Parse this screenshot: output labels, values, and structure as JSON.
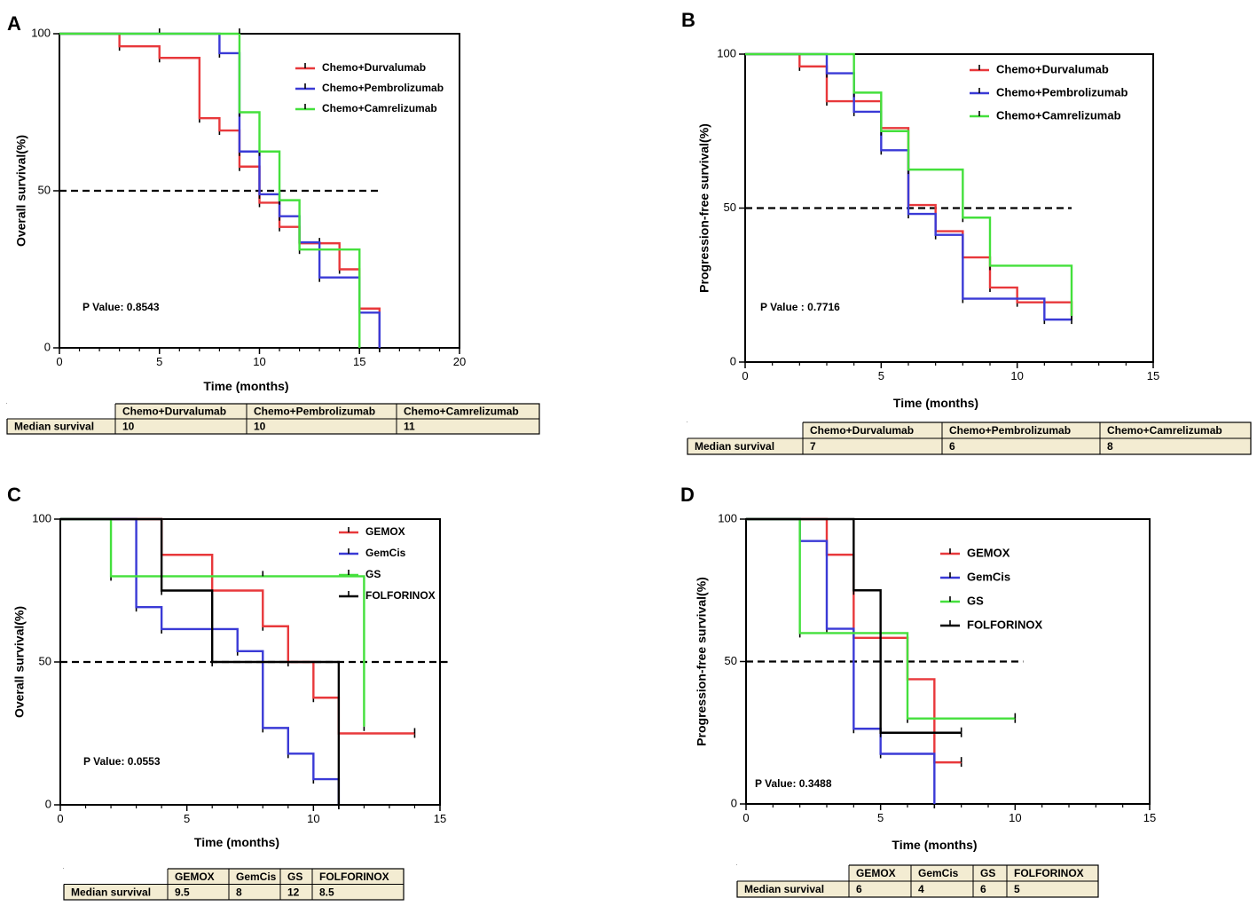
{
  "colors": {
    "red": "#e8383b",
    "blue": "#3a3ad6",
    "green": "#44e03c",
    "black": "#000000",
    "table_bg": "#f3ecd2"
  },
  "chart_data": [
    {
      "panel": "A",
      "type": "line",
      "subtype": "kaplan-meier step",
      "xlabel": "Time (months)",
      "ylabel": "Overall survival(%)",
      "xlim": [
        0,
        20
      ],
      "ylim": [
        0,
        100
      ],
      "xticks": [
        0,
        5,
        10,
        15,
        20
      ],
      "yticks": [
        0,
        50,
        100
      ],
      "reference_line": {
        "y": 50,
        "x_range": [
          0,
          16
        ],
        "style": "dashed"
      },
      "annotation": "P Value: 0.8543",
      "legend_position": "top-right",
      "series": [
        {
          "name": "Chemo+Durvalumab",
          "color": "red",
          "steps": [
            [
              0,
              100
            ],
            [
              3,
              96
            ],
            [
              5,
              92.3
            ],
            [
              7,
              73.1
            ],
            [
              8,
              69.2
            ],
            [
              9,
              57.7
            ],
            [
              10,
              46.2
            ],
            [
              11,
              38.5
            ],
            [
              12,
              33.3
            ],
            [
              14,
              25
            ],
            [
              15,
              12.5
            ],
            [
              16,
              0
            ]
          ],
          "censors": [
            [
              13,
              33.3
            ]
          ]
        },
        {
          "name": "Chemo+Pembrolizumab",
          "color": "blue",
          "steps": [
            [
              0,
              100
            ],
            [
              8,
              93.8
            ],
            [
              9,
              62.5
            ],
            [
              10,
              48.9
            ],
            [
              11,
              41.9
            ],
            [
              12,
              33.6
            ],
            [
              13,
              22.4
            ],
            [
              15,
              11.2
            ],
            [
              16,
              0
            ]
          ],
          "censors": [
            [
              5,
              100
            ]
          ]
        },
        {
          "name": "Chemo+Camrelizumab",
          "color": "green",
          "steps": [
            [
              0,
              100
            ],
            [
              9,
              75
            ],
            [
              10,
              62.5
            ],
            [
              11,
              47
            ],
            [
              12,
              31.3
            ],
            [
              15,
              0
            ]
          ],
          "censors": [
            [
              9,
              100
            ]
          ]
        }
      ],
      "table": {
        "row_label": "Median survival",
        "headers": [
          "Chemo+Durvalumab",
          "Chemo+Pembrolizumab",
          "Chemo+Camrelizumab"
        ],
        "values": [
          "10",
          "10",
          "11"
        ]
      }
    },
    {
      "panel": "B",
      "type": "line",
      "subtype": "kaplan-meier step",
      "xlabel": "Time (months)",
      "ylabel": "Progression-free survival(%)",
      "xlim": [
        0,
        15
      ],
      "ylim": [
        0,
        100
      ],
      "xticks": [
        0,
        5,
        10,
        15
      ],
      "yticks": [
        0,
        50,
        100
      ],
      "reference_line": {
        "y": 50,
        "x_range": [
          0,
          12
        ],
        "style": "dashed"
      },
      "annotation": "P Value : 0.7716",
      "legend_position": "top-right",
      "series": [
        {
          "name": "Chemo+Durvalumab",
          "color": "red",
          "steps": [
            [
              0,
              100
            ],
            [
              2,
              96
            ],
            [
              3,
              84.7
            ],
            [
              5,
              76
            ],
            [
              6,
              51
            ],
            [
              7,
              42.5
            ],
            [
              8,
              34
            ],
            [
              9,
              24.2
            ],
            [
              10,
              19.4
            ],
            [
              12,
              15
            ]
          ],
          "censors": []
        },
        {
          "name": "Chemo+Pembrolizumab",
          "color": "blue",
          "steps": [
            [
              0,
              100
            ],
            [
              3,
              93.8
            ],
            [
              4,
              81.3
            ],
            [
              5,
              68.8
            ],
            [
              6,
              48.1
            ],
            [
              7,
              41.3
            ],
            [
              8,
              20.6
            ],
            [
              11,
              13.8
            ],
            [
              12,
              13.8
            ]
          ],
          "censors": []
        },
        {
          "name": "Chemo+Camrelizumab",
          "color": "green",
          "steps": [
            [
              0,
              100
            ],
            [
              4,
              87.5
            ],
            [
              5,
              75
            ],
            [
              6,
              62.5
            ],
            [
              8,
              46.9
            ],
            [
              9,
              31.3
            ],
            [
              12,
              15
            ]
          ],
          "censors": []
        }
      ],
      "table": {
        "row_label": "Median survival",
        "headers": [
          "Chemo+Durvalumab",
          "Chemo+Pembrolizumab",
          "Chemo+Camrelizumab"
        ],
        "values": [
          "7",
          "6",
          "8"
        ]
      }
    },
    {
      "panel": "C",
      "type": "line",
      "subtype": "kaplan-meier step",
      "xlabel": "Time (months)",
      "ylabel": "Overall survival(%)",
      "xlim": [
        0,
        15
      ],
      "ylim": [
        0,
        100
      ],
      "xticks": [
        0,
        5,
        10,
        15
      ],
      "yticks": [
        0,
        50,
        100
      ],
      "reference_line": {
        "y": 50,
        "x_range": [
          0,
          15.3
        ],
        "style": "dashed"
      },
      "annotation": "P Value: 0.0553",
      "legend_position": "top-right",
      "series": [
        {
          "name": "GEMOX",
          "color": "red",
          "steps": [
            [
              0,
              100
            ],
            [
              4,
              87.5
            ],
            [
              6,
              75
            ],
            [
              8,
              62.5
            ],
            [
              9,
              50
            ],
            [
              10,
              37.5
            ],
            [
              11,
              25
            ],
            [
              14,
              25
            ]
          ],
          "censors": [
            [
              14,
              25
            ]
          ]
        },
        {
          "name": "GemCis",
          "color": "blue",
          "steps": [
            [
              0,
              100
            ],
            [
              3,
              69.2
            ],
            [
              4,
              61.5
            ],
            [
              7,
              53.8
            ],
            [
              8,
              26.9
            ],
            [
              9,
              17.9
            ],
            [
              10,
              9
            ],
            [
              11,
              0
            ]
          ],
          "censors": []
        },
        {
          "name": "GS",
          "color": "green",
          "steps": [
            [
              0,
              100
            ],
            [
              2,
              80
            ],
            [
              12,
              27.4
            ]
          ],
          "censors": [
            [
              8,
              80
            ]
          ]
        },
        {
          "name": "FOLFORINOX",
          "color": "black",
          "steps": [
            [
              0,
              100
            ],
            [
              4,
              75
            ],
            [
              6,
              50
            ],
            [
              11,
              0
            ]
          ],
          "censors": []
        }
      ],
      "table": {
        "row_label": "Median survival",
        "headers": [
          "GEMOX",
          "GemCis",
          "GS",
          "FOLFORINOX"
        ],
        "values": [
          "9.5",
          "8",
          "12",
          "8.5"
        ]
      }
    },
    {
      "panel": "D",
      "type": "line",
      "subtype": "kaplan-meier step",
      "xlabel": "Time (months)",
      "ylabel": "Progression-free survival(%)",
      "xlim": [
        0,
        15
      ],
      "ylim": [
        0,
        100
      ],
      "xticks": [
        0,
        5,
        10,
        15
      ],
      "yticks": [
        0,
        50,
        100
      ],
      "reference_line": {
        "y": 50,
        "x_range": [
          0,
          10.3
        ],
        "style": "dashed"
      },
      "annotation": "P Value: 0.3488",
      "legend_position": "top-right",
      "series": [
        {
          "name": "GEMOX",
          "color": "red",
          "steps": [
            [
              0,
              100
            ],
            [
              3,
              87.5
            ],
            [
              4,
              58.3
            ],
            [
              6,
              43.8
            ],
            [
              7,
              14.6
            ],
            [
              8,
              14.6
            ]
          ],
          "censors": [
            [
              8,
              14.6
            ]
          ]
        },
        {
          "name": "GemCis",
          "color": "blue",
          "steps": [
            [
              0,
              100
            ],
            [
              2,
              92.3
            ],
            [
              3,
              61.5
            ],
            [
              4,
              26.4
            ],
            [
              5,
              17.6
            ],
            [
              7,
              0
            ]
          ],
          "censors": []
        },
        {
          "name": "GS",
          "color": "green",
          "steps": [
            [
              0,
              100
            ],
            [
              2,
              60
            ],
            [
              6,
              30
            ],
            [
              10,
              30
            ]
          ],
          "censors": [
            [
              10,
              30
            ]
          ]
        },
        {
          "name": "FOLFORINOX",
          "color": "black",
          "steps": [
            [
              0,
              100
            ],
            [
              4,
              75
            ],
            [
              5,
              25
            ],
            [
              8,
              25
            ]
          ],
          "censors": [
            [
              8,
              25
            ]
          ]
        }
      ],
      "table": {
        "row_label": "Median survival",
        "headers": [
          "GEMOX",
          "GemCis",
          "GS",
          "FOLFORINOX"
        ],
        "values": [
          "6",
          "4",
          "6",
          "5"
        ]
      }
    }
  ]
}
